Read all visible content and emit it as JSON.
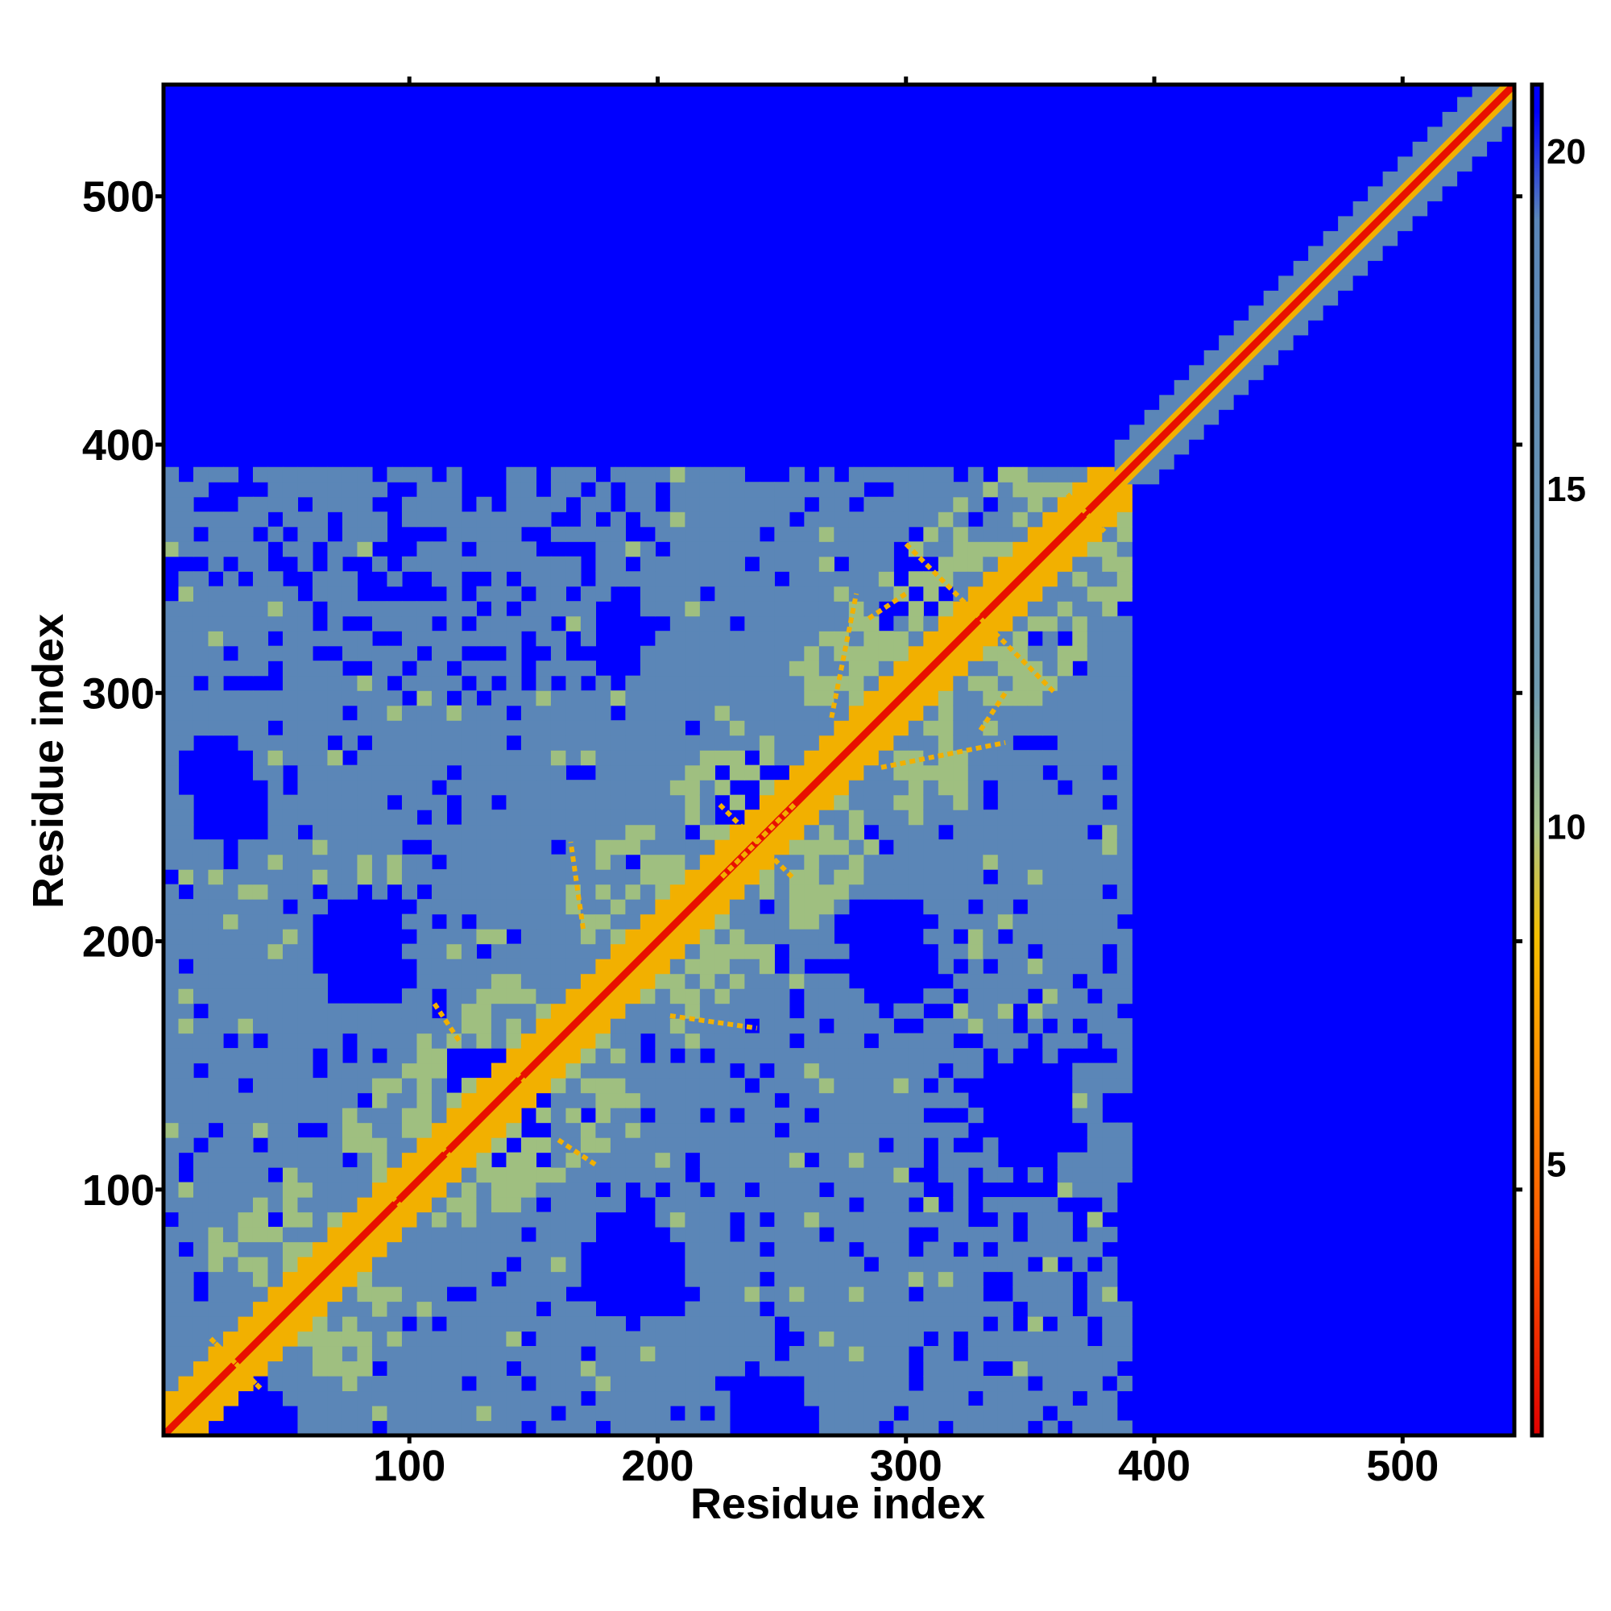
{
  "chart_data": {
    "type": "heatmap",
    "title": "",
    "xlabel": "Residue index",
    "ylabel": "Residue index",
    "xlim": [
      1,
      545
    ],
    "ylim": [
      1,
      545
    ],
    "x_ticks": [
      100,
      200,
      300,
      400,
      500
    ],
    "y_ticks": [
      100,
      200,
      300,
      400,
      500
    ],
    "colorbar": {
      "min": 1,
      "max": 21,
      "ticks": [
        5,
        10,
        15,
        20
      ],
      "colors": [
        "#e00000",
        "#ff7a00",
        "#f5b400",
        "#9fbf7f",
        "#5a86b8",
        "#0000ff"
      ]
    },
    "structure": {
      "structured_region_end": 390,
      "cells_beyond_structured_region": "background (>20)",
      "diagonal": "close contacts (<5) along i = j for all residues"
    },
    "colors": {
      "background": "#0000ff",
      "mid": "#5b86b7",
      "light": "#9fbf80",
      "near": "#f2b000",
      "close": "#e81000"
    }
  }
}
